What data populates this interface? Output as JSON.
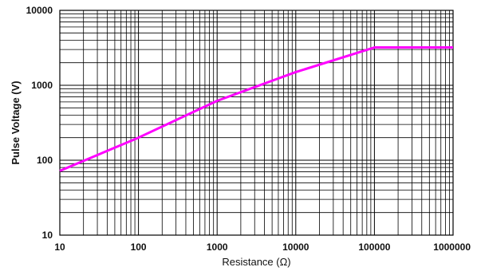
{
  "chart_data": {
    "type": "line",
    "title": "",
    "xlabel": "Resistance (Ω)",
    "ylabel": "Pulse Voltage (V)",
    "x_scale": "log",
    "y_scale": "log",
    "xlim": [
      10,
      1000000
    ],
    "ylim": [
      10,
      10000
    ],
    "x_ticks": [
      10,
      100,
      1000,
      10000,
      100000,
      1000000
    ],
    "x_tick_labels": [
      "10",
      "100",
      "1000",
      "10000",
      "100000",
      "1000000"
    ],
    "y_ticks": [
      10,
      100,
      1000,
      10000
    ],
    "y_tick_labels": [
      "10",
      "100",
      "1000",
      "10000"
    ],
    "grid": true,
    "legend": "none",
    "series": [
      {
        "color": "#ff00ff",
        "x": [
          10,
          100,
          1000,
          10000,
          100000,
          1000000
        ],
        "y": [
          72,
          200,
          620,
          1500,
          3200,
          3200
        ]
      }
    ],
    "colors": {
      "line": "#ff00ff",
      "grid": "#000000"
    }
  }
}
